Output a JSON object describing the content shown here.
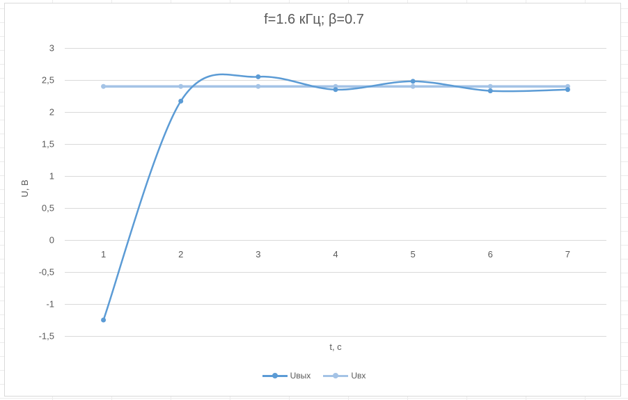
{
  "chart_data": {
    "type": "line",
    "title": "f=1.6 кГц; β=0.7",
    "xlabel": "t, c",
    "ylabel": "U, B",
    "categories": [
      "1",
      "2",
      "3",
      "4",
      "5",
      "6",
      "7"
    ],
    "ylim": [
      -1.5,
      3
    ],
    "yticks": [
      "3",
      "2,5",
      "2",
      "1,5",
      "1",
      "0,5",
      "0",
      "-0,5",
      "-1",
      "-1,5"
    ],
    "grid": true,
    "smooth": true,
    "legend": "bottom",
    "series": [
      {
        "name": "Uвых",
        "values": [
          -1.25,
          2.17,
          2.55,
          2.35,
          2.48,
          2.33,
          2.35
        ],
        "color": "#5b9bd5"
      },
      {
        "name": "Uвх",
        "values": [
          2.4,
          2.4,
          2.4,
          2.4,
          2.4,
          2.4,
          2.4
        ],
        "color": "#a4c3e6"
      }
    ]
  }
}
